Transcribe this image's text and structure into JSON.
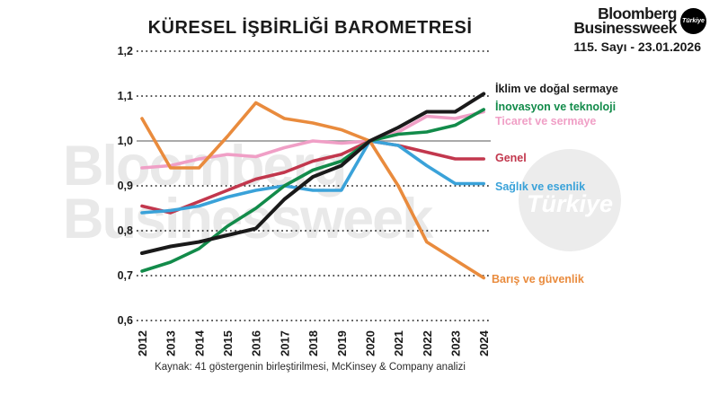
{
  "header": {
    "logo": {
      "line1": "Bloomberg",
      "line2": "Businessweek",
      "badge": "Türkiye"
    },
    "issue": "115. Sayı - 23.01.2026"
  },
  "watermark": {
    "line1": "Bloomberg",
    "line2": "Businessweek",
    "circle": "Türkiye"
  },
  "chart_data": {
    "type": "line",
    "title": "KÜRESEL İŞBİRLİĞİ BAROMETRESİ",
    "source_note": "Kaynak: 41 göstergenin birleştirilmesi, McKinsey & Company analizi",
    "categories": [
      "2012",
      "2013",
      "2014",
      "2015",
      "2016",
      "2017",
      "2018",
      "2019",
      "2020",
      "2021",
      "2022",
      "2023",
      "2024"
    ],
    "y_ticks": [
      "1,2",
      "1,1",
      "1,0",
      "0,9",
      "0,8",
      "0,7",
      "0,6"
    ],
    "ylim": [
      0.6,
      1.2
    ],
    "baseline": 1.0,
    "baseline_color": "#8e8e8e",
    "grid": "dotted-horizontal",
    "legend_position": "right",
    "series": [
      {
        "name": "İklim ve doğal sermaye",
        "color": "#1a1a1a",
        "values": [
          0.75,
          0.765,
          0.775,
          0.79,
          0.805,
          0.87,
          0.92,
          0.945,
          1.0,
          1.03,
          1.065,
          1.065,
          1.105
        ]
      },
      {
        "name": "İnovasyon ve teknoloji",
        "color": "#128b4a",
        "values": [
          0.71,
          0.73,
          0.76,
          0.81,
          0.85,
          0.9,
          0.935,
          0.955,
          1.0,
          1.015,
          1.02,
          1.035,
          1.07
        ]
      },
      {
        "name": "Ticaret ve sermaye",
        "color": "#f09fc6",
        "values": [
          0.94,
          0.945,
          0.96,
          0.97,
          0.965,
          0.985,
          1.0,
          0.995,
          1.0,
          1.02,
          1.055,
          1.05,
          1.065
        ]
      },
      {
        "name": "Genel",
        "color": "#c2374d",
        "values": [
          0.855,
          0.84,
          0.865,
          0.89,
          0.915,
          0.93,
          0.955,
          0.97,
          1.0,
          0.99,
          0.975,
          0.96,
          0.96
        ]
      },
      {
        "name": "Sağlık ve esenlik",
        "color": "#3aa2d9",
        "values": [
          0.84,
          0.845,
          0.855,
          0.875,
          0.89,
          0.9,
          0.89,
          0.89,
          1.0,
          0.99,
          0.945,
          0.905,
          0.905
        ]
      },
      {
        "name": "Barış ve güvenlik",
        "color": "#e98b3d",
        "values": [
          1.05,
          0.94,
          0.94,
          1.01,
          1.085,
          1.05,
          1.04,
          1.025,
          1.0,
          0.9,
          0.775,
          0.735,
          0.695
        ]
      }
    ]
  }
}
